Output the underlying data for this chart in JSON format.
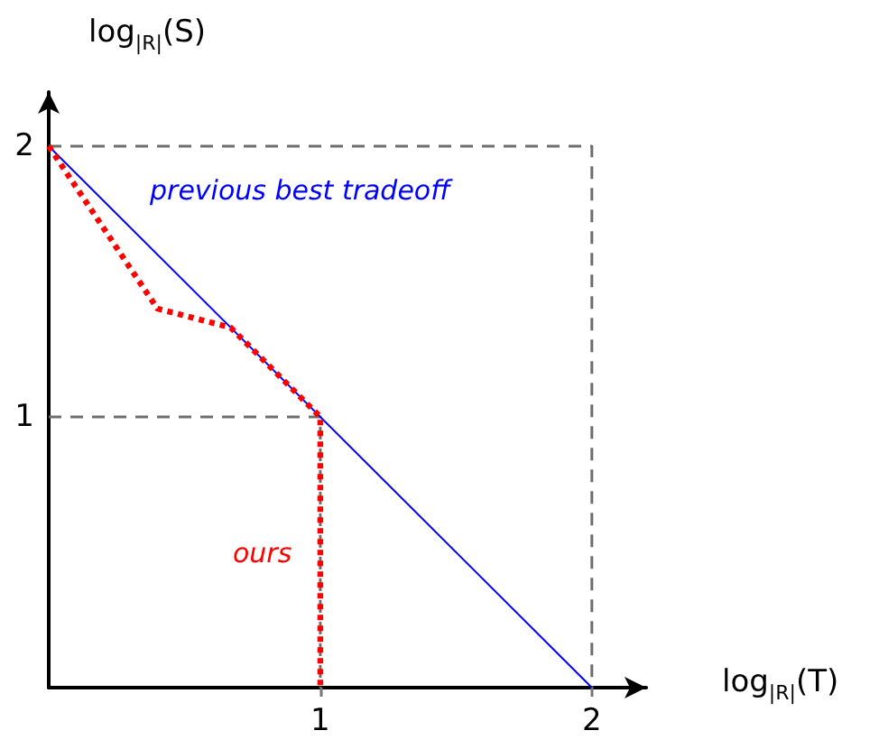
{
  "chart_data": {
    "type": "line",
    "xlabel": "log$_{|R|}$(T)",
    "ylabel": "log$_{|R|}$(S)",
    "xlim": [
      0,
      2.2
    ],
    "ylim": [
      0,
      2.2
    ],
    "xticks": [
      1,
      2
    ],
    "yticks": [
      1,
      2
    ],
    "grid": false,
    "legend": false,
    "marker": "none",
    "series": [
      {
        "x": [
          0,
          2,
          2
        ],
        "values": [
          2,
          2,
          0
        ],
        "color": "#6e6e6e",
        "line_style": "dashed"
      },
      {
        "x": [
          0,
          1,
          1
        ],
        "values": [
          1,
          1,
          0
        ],
        "color": "#6e6e6e",
        "line_style": "dashed"
      },
      {
        "name": "previous best tradeoff",
        "x": [
          0,
          2
        ],
        "values": [
          2,
          0
        ],
        "color": "#0000ff",
        "line_style": "solid"
      },
      {
        "name": "ours",
        "x": [
          0,
          0.4,
          0.67,
          1,
          1
        ],
        "values": [
          2,
          1.4,
          1.33,
          1,
          0
        ],
        "color": "#ff0000",
        "line_style": "dotted"
      }
    ]
  }
}
